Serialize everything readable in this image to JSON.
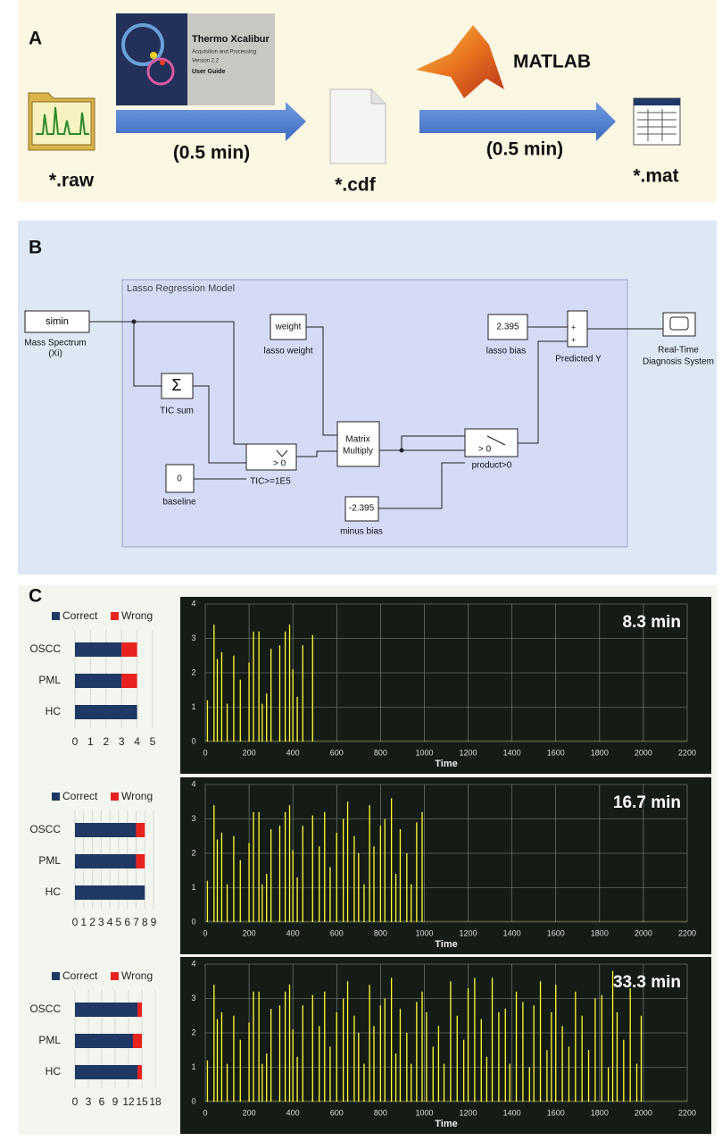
{
  "panel_a": {
    "label": "A",
    "book_title": "Thermo Xcalibur",
    "book_subtitle": "Acquisition and Processing",
    "book_version": "Version 2.2",
    "book_guide": "User Guide",
    "step1_time": "(0.5 min)",
    "step2_time": "(0.5 min)",
    "raw_file": "*.raw",
    "cdf_file": "*.cdf",
    "matlab": "MATLAB",
    "mat_file": "*.mat"
  },
  "panel_b": {
    "label": "B",
    "subsystem": "Lasso Regression Model",
    "blocks": {
      "simin": "simin",
      "simin_label1": "Mass Spectrum",
      "simin_label2": "(Xi)",
      "weight": "weight",
      "weight_label": "lasso weight",
      "bias": "2.395",
      "bias_label": "lasso bias",
      "sum_label": "TIC sum",
      "sum_symbol": "Σ",
      "sum_out": "Predicted Y",
      "scope_label1": "Real-Time",
      "scope_label2": "Diagnosis System",
      "switch1_cond": "> 0",
      "switch1_label": "TIC>=1E5",
      "zero": "0",
      "zero_label": "baseline",
      "matrix1": "Matrix",
      "matrix2": "Multiply",
      "minus": "-2.395",
      "minus_label": "minus bias",
      "switch2_cond": "> 0",
      "switch2_label": "product>0"
    }
  },
  "panel_c": {
    "label": "C"
  },
  "chart_data": [
    {
      "type": "bar",
      "orientation": "horizontal",
      "stacked": true,
      "categories": [
        "OSCC",
        "PML",
        "HC"
      ],
      "series": [
        {
          "name": "Correct",
          "color": "#1f3864",
          "values": [
            3,
            3,
            4
          ]
        },
        {
          "name": "Wrong",
          "color": "#e8231f",
          "values": [
            1,
            1,
            0
          ]
        }
      ],
      "xlim": [
        0,
        5
      ],
      "xticks": [
        0,
        1,
        2,
        3,
        4,
        5
      ],
      "grid": true
    },
    {
      "type": "stem",
      "color": "#ffff33",
      "annotation": "8.3 min",
      "xlabel": "Time",
      "x": [
        10,
        40,
        55,
        75,
        100,
        130,
        160,
        200,
        220,
        245,
        260,
        280,
        300,
        340,
        365,
        385,
        400,
        420,
        445,
        490
      ],
      "values": [
        1.2,
        3.4,
        2.4,
        2.6,
        1.1,
        2.5,
        1.8,
        2.3,
        3.2,
        3.2,
        1.1,
        1.4,
        2.7,
        2.8,
        3.2,
        3.4,
        2.1,
        1.3,
        2.8,
        3.1
      ],
      "xlim": [
        0,
        2200
      ],
      "xticks": [
        0,
        200,
        400,
        600,
        800,
        1000,
        1200,
        1400,
        1600,
        1800,
        2000,
        2200
      ],
      "ylim": [
        0,
        4
      ],
      "yticks": [
        0,
        1,
        2,
        3,
        4
      ],
      "grid": true
    },
    {
      "type": "bar",
      "orientation": "horizontal",
      "stacked": true,
      "categories": [
        "OSCC",
        "PML",
        "HC"
      ],
      "series": [
        {
          "name": "Correct",
          "color": "#1f3864",
          "values": [
            7,
            7,
            8
          ]
        },
        {
          "name": "Wrong",
          "color": "#e8231f",
          "values": [
            1,
            1,
            0
          ]
        }
      ],
      "xlim": [
        0,
        9
      ],
      "xticks": [
        0,
        1,
        2,
        3,
        4,
        5,
        6,
        7,
        8,
        9
      ],
      "grid": true
    },
    {
      "type": "stem",
      "color": "#ffff33",
      "annotation": "16.7 min",
      "xlabel": "Time",
      "x": [
        10,
        40,
        55,
        75,
        100,
        130,
        160,
        200,
        220,
        245,
        260,
        280,
        300,
        340,
        365,
        385,
        400,
        420,
        445,
        490,
        520,
        545,
        570,
        600,
        630,
        650,
        680,
        700,
        725,
        750,
        770,
        800,
        820,
        850,
        870,
        890,
        920,
        940,
        965,
        990
      ],
      "values": [
        1.2,
        3.4,
        2.4,
        2.6,
        1.1,
        2.5,
        1.8,
        2.3,
        3.2,
        3.2,
        1.1,
        1.4,
        2.7,
        2.8,
        3.2,
        3.4,
        2.1,
        1.3,
        2.8,
        3.1,
        2.2,
        3.2,
        1.6,
        2.6,
        3.0,
        3.5,
        2.5,
        2.0,
        1.1,
        3.4,
        2.2,
        2.8,
        3.0,
        3.6,
        1.4,
        2.7,
        2.0,
        1.1,
        2.9,
        3.2
      ],
      "xlim": [
        0,
        2200
      ],
      "xticks": [
        0,
        200,
        400,
        600,
        800,
        1000,
        1200,
        1400,
        1600,
        1800,
        2000,
        2200
      ],
      "ylim": [
        0,
        4
      ],
      "yticks": [
        0,
        1,
        2,
        3,
        4
      ],
      "grid": true
    },
    {
      "type": "bar",
      "orientation": "horizontal",
      "stacked": true,
      "categories": [
        "OSCC",
        "PML",
        "HC"
      ],
      "series": [
        {
          "name": "Correct",
          "color": "#1f3864",
          "values": [
            14,
            13,
            14
          ]
        },
        {
          "name": "Wrong",
          "color": "#e8231f",
          "values": [
            1,
            2,
            1
          ]
        }
      ],
      "xlim": [
        0,
        18
      ],
      "xticks": [
        0,
        3,
        6,
        9,
        12,
        15,
        18
      ],
      "grid": true
    },
    {
      "type": "stem",
      "color": "#ffff33",
      "annotation": "33.3 min",
      "xlabel": "Time",
      "x": [
        10,
        40,
        55,
        75,
        100,
        130,
        160,
        200,
        220,
        245,
        260,
        280,
        300,
        340,
        365,
        385,
        400,
        420,
        445,
        490,
        520,
        545,
        570,
        600,
        630,
        650,
        680,
        700,
        725,
        750,
        770,
        800,
        820,
        850,
        870,
        890,
        920,
        940,
        965,
        990,
        1010,
        1040,
        1065,
        1090,
        1120,
        1150,
        1180,
        1200,
        1230,
        1260,
        1285,
        1310,
        1340,
        1370,
        1390,
        1420,
        1450,
        1480,
        1500,
        1530,
        1560,
        1580,
        1600,
        1630,
        1660,
        1690,
        1720,
        1750,
        1780,
        1810,
        1840,
        1860,
        1880,
        1910,
        1940,
        1970,
        1990
      ],
      "values": [
        1.2,
        3.4,
        2.4,
        2.6,
        1.1,
        2.5,
        1.8,
        2.3,
        3.2,
        3.2,
        1.1,
        1.4,
        2.7,
        2.8,
        3.2,
        3.4,
        2.1,
        1.3,
        2.8,
        3.1,
        2.2,
        3.2,
        1.6,
        2.6,
        3.0,
        3.5,
        2.5,
        2.0,
        1.1,
        3.4,
        2.2,
        2.8,
        3.0,
        3.6,
        1.4,
        2.7,
        2.0,
        1.1,
        2.9,
        3.2,
        2.6,
        1.6,
        2.2,
        1.1,
        3.5,
        2.5,
        1.8,
        3.3,
        3.6,
        2.4,
        1.3,
        3.6,
        2.6,
        2.7,
        1.1,
        3.2,
        2.9,
        1.0,
        2.8,
        3.5,
        1.5,
        2.6,
        3.4,
        2.2,
        1.6,
        3.2,
        2.5,
        1.5,
        3.0,
        3.1,
        1.0,
        3.8,
        2.6,
        1.8,
        3.3,
        1.1,
        2.5
      ],
      "xlim": [
        0,
        2200
      ],
      "xticks": [
        0,
        200,
        400,
        600,
        800,
        1000,
        1200,
        1400,
        1600,
        1800,
        2000,
        2200
      ],
      "ylim": [
        0,
        4
      ],
      "yticks": [
        0,
        1,
        2,
        3,
        4
      ],
      "grid": true
    }
  ]
}
